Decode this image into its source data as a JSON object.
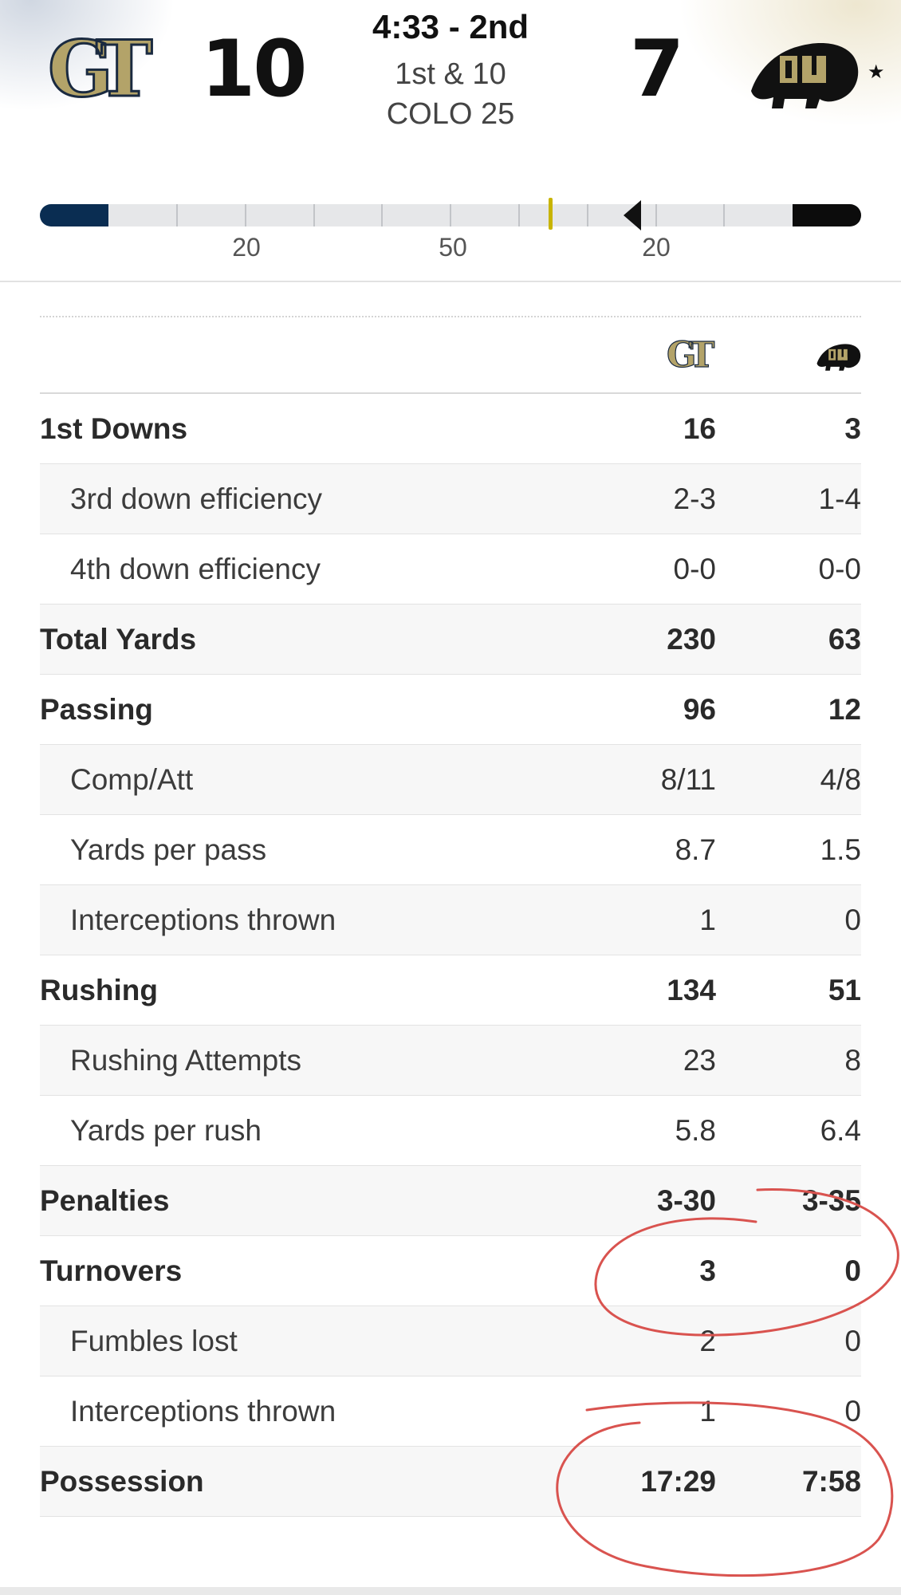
{
  "colors": {
    "home_primary": "#0a2d52",
    "away_primary": "#0c0c0c",
    "gt_gold": "#b3a369",
    "first_down_marker": "#c8b400",
    "annotation_red": "#d9534f"
  },
  "scoreboard": {
    "home_team_logo": "gt-logo",
    "home_score": "10",
    "away_team_logo": "colorado-buffalo-logo",
    "away_score": "7",
    "clock": "4:33 - 2nd",
    "down_distance": "1st & 10",
    "ball_on": "COLO 25",
    "possession_indicator": "★"
  },
  "field": {
    "yard_labels": [
      "20",
      "50",
      "20"
    ],
    "ball_spot": "COLO 25",
    "first_down_line": "COLO 35"
  },
  "stats": {
    "columns": [
      "gt-logo",
      "colorado-buffalo-logo"
    ],
    "rows": [
      {
        "label": "1st Downs",
        "home": "16",
        "away": "3",
        "level": "main"
      },
      {
        "label": "3rd down efficiency",
        "home": "2-3",
        "away": "1-4",
        "level": "sub"
      },
      {
        "label": "4th down efficiency",
        "home": "0-0",
        "away": "0-0",
        "level": "sub"
      },
      {
        "label": "Total Yards",
        "home": "230",
        "away": "63",
        "level": "main"
      },
      {
        "label": "Passing",
        "home": "96",
        "away": "12",
        "level": "main"
      },
      {
        "label": "Comp/Att",
        "home": "8/11",
        "away": "4/8",
        "level": "sub"
      },
      {
        "label": "Yards per pass",
        "home": "8.7",
        "away": "1.5",
        "level": "sub"
      },
      {
        "label": "Interceptions thrown",
        "home": "1",
        "away": "0",
        "level": "sub"
      },
      {
        "label": "Rushing",
        "home": "134",
        "away": "51",
        "level": "main"
      },
      {
        "label": "Rushing Attempts",
        "home": "23",
        "away": "8",
        "level": "sub"
      },
      {
        "label": "Yards per rush",
        "home": "5.8",
        "away": "6.4",
        "level": "sub"
      },
      {
        "label": "Penalties",
        "home": "3-30",
        "away": "3-35",
        "level": "main"
      },
      {
        "label": "Turnovers",
        "home": "3",
        "away": "0",
        "level": "main"
      },
      {
        "label": "Fumbles lost",
        "home": "2",
        "away": "0",
        "level": "sub"
      },
      {
        "label": "Interceptions thrown",
        "home": "1",
        "away": "0",
        "level": "sub"
      },
      {
        "label": "Possession",
        "home": "17:29",
        "away": "7:58",
        "level": "main"
      }
    ]
  },
  "annotations": [
    "red-circle-turnovers",
    "red-circle-possession"
  ]
}
